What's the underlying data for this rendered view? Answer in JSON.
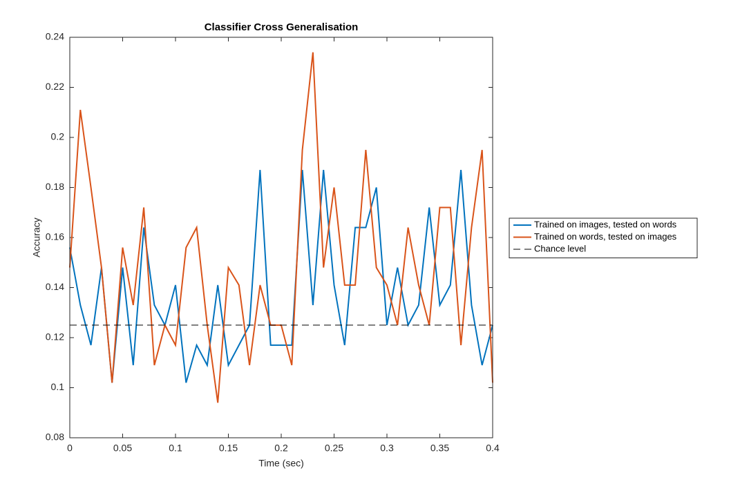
{
  "chart_data": {
    "type": "line",
    "title": "Classifier Cross Generalisation",
    "x_label": "Time (sec)",
    "y_label": "Accuracy",
    "x": [
      0,
      0.01,
      0.02,
      0.03,
      0.04,
      0.05,
      0.06,
      0.07,
      0.08,
      0.09,
      0.1,
      0.11,
      0.12,
      0.13,
      0.14,
      0.15,
      0.16,
      0.17,
      0.18,
      0.19,
      0.2,
      0.21,
      0.22,
      0.23,
      0.24,
      0.25,
      0.26,
      0.27,
      0.28,
      0.29,
      0.3,
      0.31,
      0.32,
      0.33,
      0.34,
      0.35,
      0.36,
      0.37,
      0.38,
      0.39,
      0.4
    ],
    "series": [
      {
        "name": "Trained on images, tested on words",
        "color": "#0072bd",
        "linestyle": "solid",
        "values": [
          0.156,
          0.133,
          0.117,
          0.148,
          0.102,
          0.148,
          0.109,
          0.164,
          0.133,
          0.125,
          0.141,
          0.102,
          0.117,
          0.109,
          0.141,
          0.109,
          0.117,
          0.125,
          0.187,
          0.117,
          0.117,
          0.117,
          0.187,
          0.133,
          0.187,
          0.141,
          0.117,
          0.164,
          0.164,
          0.18,
          0.125,
          0.148,
          0.125,
          0.133,
          0.172,
          0.133,
          0.141,
          0.187,
          0.133,
          0.109,
          0.125
        ]
      },
      {
        "name": "Trained on words, tested on images",
        "color": "#d95319",
        "linestyle": "solid",
        "values": [
          0.148,
          0.211,
          0.18,
          0.148,
          0.102,
          0.156,
          0.133,
          0.172,
          0.109,
          0.125,
          0.117,
          0.156,
          0.164,
          0.125,
          0.094,
          0.148,
          0.141,
          0.109,
          0.141,
          0.125,
          0.125,
          0.109,
          0.195,
          0.234,
          0.148,
          0.18,
          0.141,
          0.141,
          0.195,
          0.148,
          0.141,
          0.125,
          0.164,
          0.141,
          0.125,
          0.172,
          0.172,
          0.117,
          0.164,
          0.195,
          0.102
        ]
      },
      {
        "name": "Chance level",
        "color": "#000000",
        "linestyle": "dashed",
        "values": [
          0.125,
          0.125,
          0.125,
          0.125,
          0.125,
          0.125,
          0.125,
          0.125,
          0.125,
          0.125,
          0.125,
          0.125,
          0.125,
          0.125,
          0.125,
          0.125,
          0.125,
          0.125,
          0.125,
          0.125,
          0.125,
          0.125,
          0.125,
          0.125,
          0.125,
          0.125,
          0.125,
          0.125,
          0.125,
          0.125,
          0.125,
          0.125,
          0.125,
          0.125,
          0.125,
          0.125,
          0.125,
          0.125,
          0.125,
          0.125,
          0.125
        ]
      }
    ],
    "xlim": [
      0,
      0.4
    ],
    "xticks": [
      0,
      0.05,
      0.1,
      0.15,
      0.2,
      0.25,
      0.3,
      0.35,
      0.4
    ],
    "ylim": [
      0.08,
      0.24
    ],
    "yticks": [
      0.08,
      0.1,
      0.12,
      0.14,
      0.16,
      0.18,
      0.2,
      0.22,
      0.24
    ],
    "grid": false,
    "legend": "outside-right"
  }
}
